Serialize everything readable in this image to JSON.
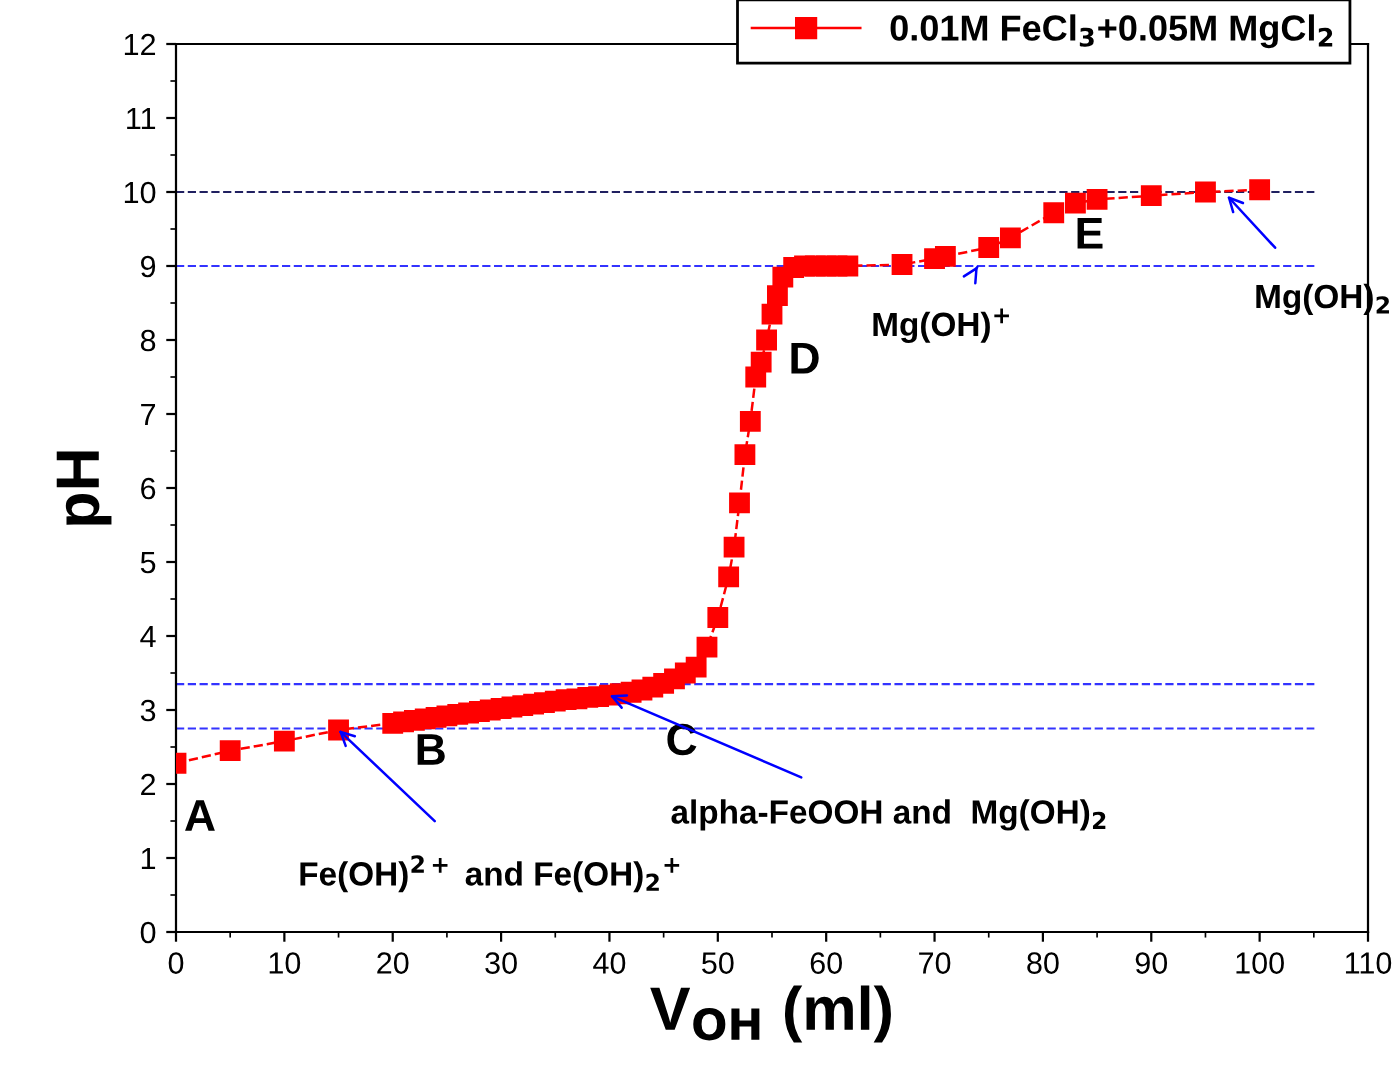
{
  "chart_data": {
    "type": "line",
    "xlabel": "V$_{OH}$ (ml)",
    "ylabel": "pH",
    "xlim": [
      0,
      110
    ],
    "ylim": [
      0,
      12
    ],
    "xticks": [
      0,
      10,
      20,
      30,
      40,
      50,
      60,
      70,
      80,
      90,
      100,
      110
    ],
    "yticks": [
      0,
      1,
      2,
      3,
      4,
      5,
      6,
      7,
      8,
      9,
      10,
      11,
      12
    ],
    "marker": "square",
    "line_style": "dashed",
    "legend": "top right",
    "grid": false,
    "series": [
      {
        "name": "0.01M FeCl$_{3}$+0.05M MgCl$_{2}$",
        "color": "#ff0000",
        "x": [
          0,
          5,
          10,
          15,
          20,
          21,
          22,
          23,
          24,
          25,
          26,
          27,
          28,
          29,
          30,
          31,
          32,
          33,
          34,
          35,
          36,
          37,
          38,
          39,
          40,
          41,
          42,
          43,
          44,
          45,
          46,
          47,
          48,
          49,
          50,
          51,
          51.5,
          52,
          52.5,
          53,
          53.5,
          54,
          54.5,
          55,
          55.5,
          56,
          57,
          58,
          59,
          60,
          61,
          62,
          67,
          70,
          71,
          75,
          77,
          81,
          83,
          85,
          90,
          95,
          100
        ],
        "values": [
          2.28,
          2.45,
          2.58,
          2.73,
          2.82,
          2.84,
          2.86,
          2.88,
          2.9,
          2.92,
          2.94,
          2.96,
          2.98,
          3.0,
          3.02,
          3.04,
          3.06,
          3.08,
          3.1,
          3.12,
          3.14,
          3.15,
          3.17,
          3.18,
          3.2,
          3.22,
          3.24,
          3.27,
          3.31,
          3.36,
          3.42,
          3.5,
          3.58,
          3.85,
          4.25,
          4.8,
          5.2,
          5.8,
          6.45,
          6.9,
          7.5,
          7.7,
          8.0,
          8.35,
          8.6,
          8.85,
          8.98,
          9.0,
          9.0,
          9.0,
          9.0,
          9.0,
          9.02,
          9.1,
          9.13,
          9.25,
          9.38,
          9.72,
          9.85,
          9.9,
          9.95,
          10.0,
          10.03
        ]
      }
    ],
    "ref_lines": [
      {
        "axis": "y",
        "value": 10,
        "color": "#202060",
        "line_style": "dashed"
      },
      {
        "axis": "y",
        "value": 9,
        "color": "#3333ff",
        "line_style": "dashed"
      },
      {
        "axis": "y",
        "value": 3.35,
        "color": "#3333ff",
        "line_style": "dashed"
      },
      {
        "axis": "y",
        "value": 2.75,
        "color": "#3333ff",
        "line_style": "dashed"
      }
    ],
    "annotations": [
      {
        "text": "A",
        "x": 0,
        "y": 2.28
      },
      {
        "text": "B",
        "x": 20,
        "y": 2.82
      },
      {
        "text": "C",
        "x": 45,
        "y": 3.36
      },
      {
        "text": "D",
        "x": 58,
        "y": 9.0
      },
      {
        "text": "E",
        "x": 83,
        "y": 9.85
      },
      {
        "text": "Fe(OH)$^{2+}$ and Fe(OH)$_{2}$$^{+}$",
        "x": 15,
        "y": 2.73
      },
      {
        "text": "alpha-FeOOH and  Mg(OH)$_{2}$",
        "x": 40,
        "y": 3.2
      },
      {
        "text": "Mg(OH)$^{+}$",
        "x": 74,
        "y": 9.0
      },
      {
        "text": "Mg(OH)$_{2}$",
        "x": 97,
        "y": 9.95
      }
    ]
  }
}
